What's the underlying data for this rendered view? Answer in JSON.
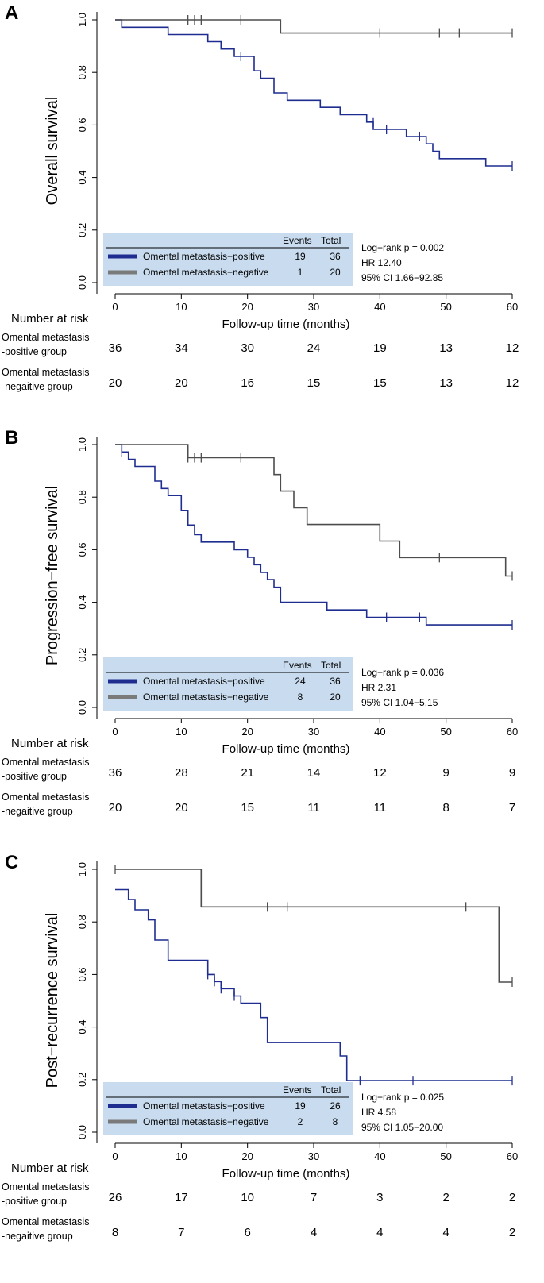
{
  "colors": {
    "positive": "#1f2d91",
    "negative": "#4d4d4d",
    "legend_bg": "#c9dcef"
  },
  "chart_data": [
    {
      "type": "line",
      "panel_label": "A",
      "ylabel": "Overall survival",
      "xlabel": "Follow-up time (months)",
      "xlim": [
        0,
        60
      ],
      "ylim": [
        0,
        1
      ],
      "x_ticks": [
        "0",
        "10",
        "20",
        "30",
        "40",
        "50",
        "60"
      ],
      "y_ticks": [
        "0.0",
        "0.2",
        "0.4",
        "0.6",
        "0.8",
        "1.0"
      ],
      "series": [
        {
          "name": "Omental metastasis−positive",
          "color": "#1f2d91",
          "steps": [
            [
              0,
              1.0
            ],
            [
              1,
              0.972
            ],
            [
              8,
              0.944
            ],
            [
              14,
              0.917
            ],
            [
              16,
              0.889
            ],
            [
              18,
              0.861
            ],
            [
              21,
              0.806
            ],
            [
              22,
              0.778
            ],
            [
              24,
              0.722
            ],
            [
              26,
              0.694
            ],
            [
              31,
              0.667
            ],
            [
              34,
              0.639
            ],
            [
              38,
              0.611
            ],
            [
              39,
              0.583
            ],
            [
              44,
              0.556
            ],
            [
              47,
              0.528
            ],
            [
              48,
              0.5
            ],
            [
              49,
              0.472
            ],
            [
              56,
              0.444
            ],
            [
              60,
              0.444
            ]
          ],
          "censors": [
            [
              19,
              0.861
            ],
            [
              39,
              0.611
            ],
            [
              41,
              0.583
            ],
            [
              46,
              0.556
            ],
            [
              60,
              0.444
            ]
          ]
        },
        {
          "name": "Omental metastasis−negative",
          "color": "#4d4d4d",
          "steps": [
            [
              0,
              1.0
            ],
            [
              25,
              0.95
            ],
            [
              60,
              0.95
            ]
          ],
          "censors": [
            [
              11,
              1.0
            ],
            [
              12,
              1.0
            ],
            [
              13,
              1.0
            ],
            [
              19,
              1.0
            ],
            [
              40,
              0.95
            ],
            [
              49,
              0.95
            ],
            [
              52,
              0.95
            ],
            [
              60,
              0.95
            ]
          ]
        }
      ],
      "legend": {
        "header_events": "Events",
        "header_total": "Total",
        "rows": [
          {
            "label": "Omental metastasis−positive",
            "events": "19",
            "total": "36"
          },
          {
            "label": "Omental metastasis−negative",
            "events": "1",
            "total": "20"
          }
        ]
      },
      "stats": [
        "Log−rank p = 0.002",
        "HR 12.40",
        "95% CI  1.66−92.85"
      ],
      "risk_table": {
        "title": "Number at risk",
        "groups": [
          {
            "label_lines": [
              "Omental metastasis",
              "-positive group"
            ],
            "counts": [
              "36",
              "34",
              "30",
              "24",
              "19",
              "13",
              "12"
            ]
          },
          {
            "label_lines": [
              "Omental metastasis",
              "-negaitive group"
            ],
            "counts": [
              "20",
              "20",
              "16",
              "15",
              "15",
              "13",
              "12"
            ]
          }
        ]
      }
    },
    {
      "type": "line",
      "panel_label": "B",
      "ylabel": "Progression−free survival",
      "xlabel": "Follow-up time (months)",
      "xlim": [
        0,
        60
      ],
      "ylim": [
        0,
        1
      ],
      "x_ticks": [
        "0",
        "10",
        "20",
        "30",
        "40",
        "50",
        "60"
      ],
      "y_ticks": [
        "0.0",
        "0.2",
        "0.4",
        "0.6",
        "0.8",
        "1.0"
      ],
      "series": [
        {
          "name": "Omental metastasis−positive",
          "color": "#1f2d91",
          "steps": [
            [
              0,
              1.0
            ],
            [
              1,
              0.972
            ],
            [
              2,
              0.944
            ],
            [
              3,
              0.917
            ],
            [
              6,
              0.861
            ],
            [
              7,
              0.833
            ],
            [
              8,
              0.806
            ],
            [
              10,
              0.75
            ],
            [
              11,
              0.694
            ],
            [
              12,
              0.657
            ],
            [
              13,
              0.629
            ],
            [
              18,
              0.6
            ],
            [
              20,
              0.571
            ],
            [
              21,
              0.543
            ],
            [
              22,
              0.514
            ],
            [
              23,
              0.486
            ],
            [
              24,
              0.457
            ],
            [
              25,
              0.4
            ],
            [
              32,
              0.371
            ],
            [
              38,
              0.343
            ],
            [
              47,
              0.314
            ],
            [
              60,
              0.314
            ]
          ],
          "censors": [
            [
              1,
              0.972
            ],
            [
              41,
              0.343
            ],
            [
              46,
              0.343
            ],
            [
              60,
              0.314
            ]
          ]
        },
        {
          "name": "Omental metastasis−negative",
          "color": "#4d4d4d",
          "steps": [
            [
              0,
              1.0
            ],
            [
              11,
              0.95
            ],
            [
              23,
              0.95
            ],
            [
              24,
              0.886
            ],
            [
              25,
              0.823
            ],
            [
              27,
              0.76
            ],
            [
              29,
              0.696
            ],
            [
              40,
              0.633
            ],
            [
              43,
              0.57
            ],
            [
              59,
              0.5
            ],
            [
              60,
              0.5
            ]
          ],
          "censors": [
            [
              11,
              0.95
            ],
            [
              12,
              0.95
            ],
            [
              13,
              0.95
            ],
            [
              19,
              0.95
            ],
            [
              49,
              0.57
            ],
            [
              60,
              0.5
            ]
          ]
        }
      ],
      "legend": {
        "header_events": "Events",
        "header_total": "Total",
        "rows": [
          {
            "label": "Omental metastasis−positive",
            "events": "24",
            "total": "36"
          },
          {
            "label": "Omental metastasis−negative",
            "events": "8",
            "total": "20"
          }
        ]
      },
      "stats": [
        "Log−rank p = 0.036",
        "HR 2.31",
        "95% CI  1.04−5.15"
      ],
      "risk_table": {
        "title": "Number at risk",
        "groups": [
          {
            "label_lines": [
              "Omental metastasis",
              "-positive group"
            ],
            "counts": [
              "36",
              "28",
              "21",
              "14",
              "12",
              "9",
              "9"
            ]
          },
          {
            "label_lines": [
              "Omental metastasis",
              "-negaitive group"
            ],
            "counts": [
              "20",
              "20",
              "15",
              "11",
              "11",
              "8",
              "7"
            ]
          }
        ]
      }
    },
    {
      "type": "line",
      "panel_label": "C",
      "ylabel": "Post−recurrence survival",
      "xlabel": "Follow-up time (months)",
      "xlim": [
        0,
        60
      ],
      "ylim": [
        0,
        1
      ],
      "x_ticks": [
        "0",
        "10",
        "20",
        "30",
        "40",
        "50",
        "60"
      ],
      "y_ticks": [
        "0.0",
        "0.2",
        "0.4",
        "0.6",
        "0.8",
        "1.0"
      ],
      "series": [
        {
          "name": "Omental metastasis−positive",
          "color": "#1f2d91",
          "steps": [
            [
              0,
              0.923
            ],
            [
              2,
              0.885
            ],
            [
              3,
              0.846
            ],
            [
              5,
              0.808
            ],
            [
              6,
              0.731
            ],
            [
              8,
              0.654
            ],
            [
              14,
              0.6
            ],
            [
              15,
              0.573
            ],
            [
              16,
              0.546
            ],
            [
              18,
              0.518
            ],
            [
              19,
              0.491
            ],
            [
              22,
              0.436
            ],
            [
              23,
              0.341
            ],
            [
              34,
              0.29
            ],
            [
              35,
              0.196
            ],
            [
              60,
              0.196
            ]
          ],
          "censors": [
            [
              14,
              0.6
            ],
            [
              15,
              0.573
            ],
            [
              16,
              0.546
            ],
            [
              18,
              0.518
            ],
            [
              37,
              0.196
            ],
            [
              45,
              0.196
            ],
            [
              60,
              0.196
            ]
          ]
        },
        {
          "name": "Omental metastasis−negative",
          "color": "#4d4d4d",
          "steps": [
            [
              0,
              1.0
            ],
            [
              13,
              0.857
            ],
            [
              58,
              0.857
            ],
            [
              58,
              0.571
            ],
            [
              60,
              0.571
            ]
          ],
          "censors": [
            [
              0,
              1.0
            ],
            [
              23,
              0.857
            ],
            [
              26,
              0.857
            ],
            [
              53,
              0.857
            ],
            [
              60,
              0.571
            ]
          ]
        }
      ],
      "legend": {
        "header_events": "Events",
        "header_total": "Total",
        "rows": [
          {
            "label": "Omental metastasis−positive",
            "events": "19",
            "total": "26"
          },
          {
            "label": "Omental metastasis−negative",
            "events": "2",
            "total": "8"
          }
        ]
      },
      "stats": [
        "Log−rank p = 0.025",
        "HR 4.58",
        "95% CI  1.05−20.00"
      ],
      "risk_table": {
        "title": "Number at risk",
        "groups": [
          {
            "label_lines": [
              "Omental metastasis",
              "-positive group"
            ],
            "counts": [
              "26",
              "17",
              "10",
              "7",
              "3",
              "2",
              "2"
            ]
          },
          {
            "label_lines": [
              "Omental metastasis",
              "-negaitive group"
            ],
            "counts": [
              "8",
              "7",
              "6",
              "4",
              "4",
              "4",
              "2"
            ]
          }
        ]
      }
    }
  ]
}
